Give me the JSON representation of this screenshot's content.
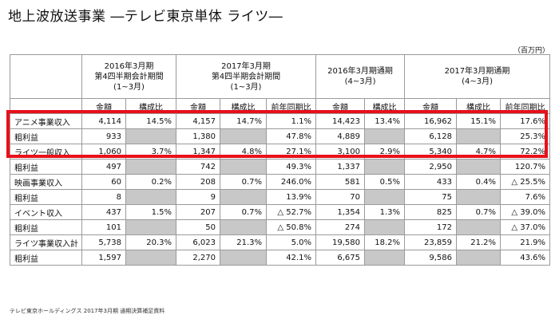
{
  "title": "地上波放送事業 ―テレビ東京単体 ライツ―",
  "unit": "（百万円）",
  "headers": {
    "p1": [
      "2016年3月期",
      "第4四半期会計期間",
      "(1~3月)"
    ],
    "p2": [
      "2017年3月期",
      "第4四半期会計期間",
      "(1~3月)"
    ],
    "p3": [
      "2016年3月期通期",
      "(4~3月)"
    ],
    "p4": [
      "2017年3月期通期",
      "(4~3月)"
    ],
    "amount": "金額",
    "ratio": "構成比",
    "yoy": "前年同期比"
  },
  "rows": [
    {
      "label": "アニメ事業収入",
      "p1a": "4,114",
      "p1r": "14.5%",
      "p2a": "4,157",
      "p2r": "14.7%",
      "p2y": "1.1%",
      "p3a": "14,423",
      "p3r": "13.4%",
      "p4a": "16,962",
      "p4r": "15.1%",
      "p4y": "17.6%"
    },
    {
      "label": "粗利益",
      "p1a": "933",
      "p2a": "1,380",
      "p2y": "47.8%",
      "p3a": "4,889",
      "p4a": "6,128",
      "p4y": "25.3%"
    },
    {
      "label": "ライツ一般収入",
      "p1a": "1,060",
      "p1r": "3.7%",
      "p2a": "1,347",
      "p2r": "4.8%",
      "p2y": "27.1%",
      "p3a": "3,100",
      "p3r": "2.9%",
      "p4a": "5,340",
      "p4r": "4.7%",
      "p4y": "72.2%"
    },
    {
      "label": "粗利益",
      "p1a": "497",
      "p2a": "742",
      "p2y": "49.3%",
      "p3a": "1,337",
      "p4a": "2,950",
      "p4y": "120.7%"
    },
    {
      "label": "映画事業収入",
      "p1a": "60",
      "p1r": "0.2%",
      "p2a": "208",
      "p2r": "0.7%",
      "p2y": "246.0%",
      "p3a": "581",
      "p3r": "0.5%",
      "p4a": "433",
      "p4r": "0.4%",
      "p4y": "△ 25.5%"
    },
    {
      "label": "粗利益",
      "p1a": "8",
      "p2a": "9",
      "p2y": "13.9%",
      "p3a": "70",
      "p4a": "75",
      "p4y": "7.6%"
    },
    {
      "label": "イベント収入",
      "p1a": "437",
      "p1r": "1.5%",
      "p2a": "207",
      "p2r": "0.7%",
      "p2y": "△ 52.7%",
      "p3a": "1,354",
      "p3r": "1.3%",
      "p4a": "825",
      "p4r": "0.7%",
      "p4y": "△ 39.0%"
    },
    {
      "label": "粗利益",
      "p1a": "101",
      "p2a": "50",
      "p2y": "△ 50.8%",
      "p3a": "274",
      "p4a": "172",
      "p4y": "△ 37.0%"
    },
    {
      "label": "ライツ事業収入計",
      "p1a": "5,738",
      "p1r": "20.3%",
      "p2a": "6,023",
      "p2r": "21.3%",
      "p2y": "5.0%",
      "p3a": "19,580",
      "p3r": "18.2%",
      "p4a": "23,859",
      "p4r": "21.2%",
      "p4y": "21.9%"
    },
    {
      "label": "粗利益",
      "p1a": "1,597",
      "p2a": "2,270",
      "p2y": "42.1%",
      "p3a": "6,675",
      "p4a": "9,586",
      "p4y": "43.6%"
    }
  ],
  "footer": "テレビ東京ホールディングス 2017年3月期 通期決算補足資料",
  "colors": {
    "highlight": "#e8101a",
    "cell_gray": "#c8c8c8"
  }
}
